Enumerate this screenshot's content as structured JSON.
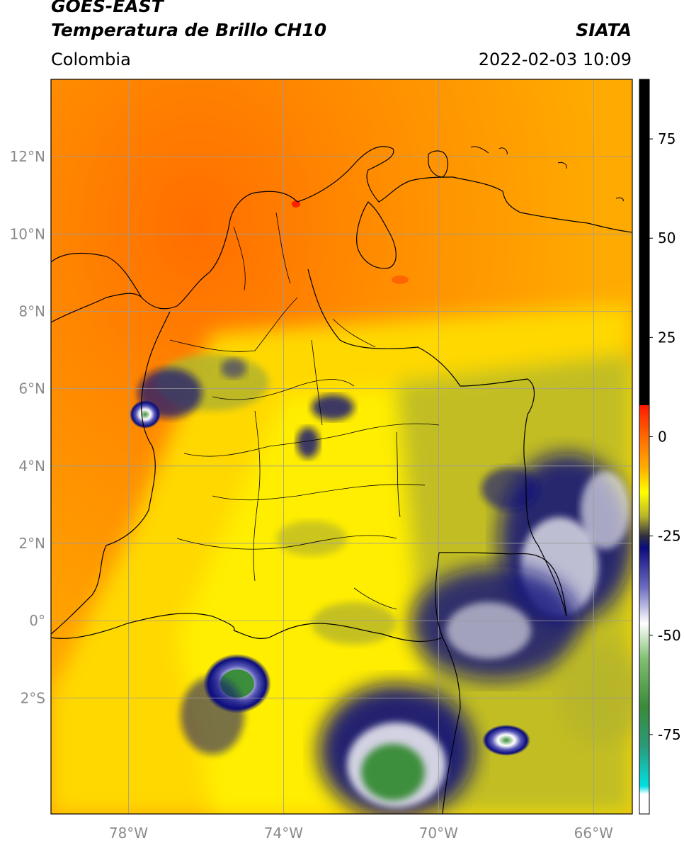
{
  "header": {
    "title_line1": "GOES-EAST",
    "title_line2": "Temperatura de Brillo CH10",
    "organization": "SIATA",
    "region": "Colombia",
    "datetime": "2022-02-03 10:09"
  },
  "map": {
    "lon_range": [
      -80,
      -65
    ],
    "lat_range": [
      -5,
      14
    ],
    "lat_ticks": [
      {
        "value": 12,
        "label": "12°N"
      },
      {
        "value": 10,
        "label": "10°N"
      },
      {
        "value": 8,
        "label": "8°N"
      },
      {
        "value": 6,
        "label": "6°N"
      },
      {
        "value": 4,
        "label": "4°N"
      },
      {
        "value": 2,
        "label": "2°N"
      },
      {
        "value": 0,
        "label": "0°"
      },
      {
        "value": -2,
        "label": "2°S"
      }
    ],
    "lon_ticks": [
      {
        "value": -78,
        "label": "78°W"
      },
      {
        "value": -74,
        "label": "74°W"
      },
      {
        "value": -70,
        "label": "70°W"
      },
      {
        "value": -66,
        "label": "66°W"
      }
    ],
    "gridlines": true,
    "colors": {
      "warm_sea": "#ff8a00",
      "warm": "#ffa200",
      "mid": "#ffe800",
      "olive": "#b7b52a",
      "deep_blue": "#0b0c7c",
      "white": "#ffffff",
      "green": "#3c8e3c",
      "border": "#000000",
      "grid": "#9b9b9b"
    }
  },
  "colorbar": {
    "range": [
      -95,
      90
    ],
    "ticks": [
      {
        "value": 75,
        "label": "75"
      },
      {
        "value": 50,
        "label": "50"
      },
      {
        "value": 25,
        "label": "25"
      },
      {
        "value": 0,
        "label": "0"
      },
      {
        "value": -25,
        "label": "-25"
      },
      {
        "value": -50,
        "label": "-50"
      },
      {
        "value": -75,
        "label": "-75"
      }
    ],
    "stops": [
      {
        "value": 90,
        "color": "#000000"
      },
      {
        "value": 8,
        "color": "#000000"
      },
      {
        "value": 7.9,
        "color": "#ff1a00"
      },
      {
        "value": 0,
        "color": "#ff6a00"
      },
      {
        "value": -8,
        "color": "#ffb000"
      },
      {
        "value": -14,
        "color": "#ffff00"
      },
      {
        "value": -20,
        "color": "#b8b52a"
      },
      {
        "value": -25,
        "color": "#303040"
      },
      {
        "value": -28,
        "color": "#0b0c7c"
      },
      {
        "value": -38,
        "color": "#6d6dc0"
      },
      {
        "value": -47,
        "color": "#ffffff"
      },
      {
        "value": -56,
        "color": "#7fbf6f"
      },
      {
        "value": -68,
        "color": "#3a8a3a"
      },
      {
        "value": -78,
        "color": "#2a9a7a"
      },
      {
        "value": -88,
        "color": "#00e0e0"
      },
      {
        "value": -90,
        "color": "#ffffff"
      },
      {
        "value": -95,
        "color": "#ffffff"
      }
    ]
  }
}
